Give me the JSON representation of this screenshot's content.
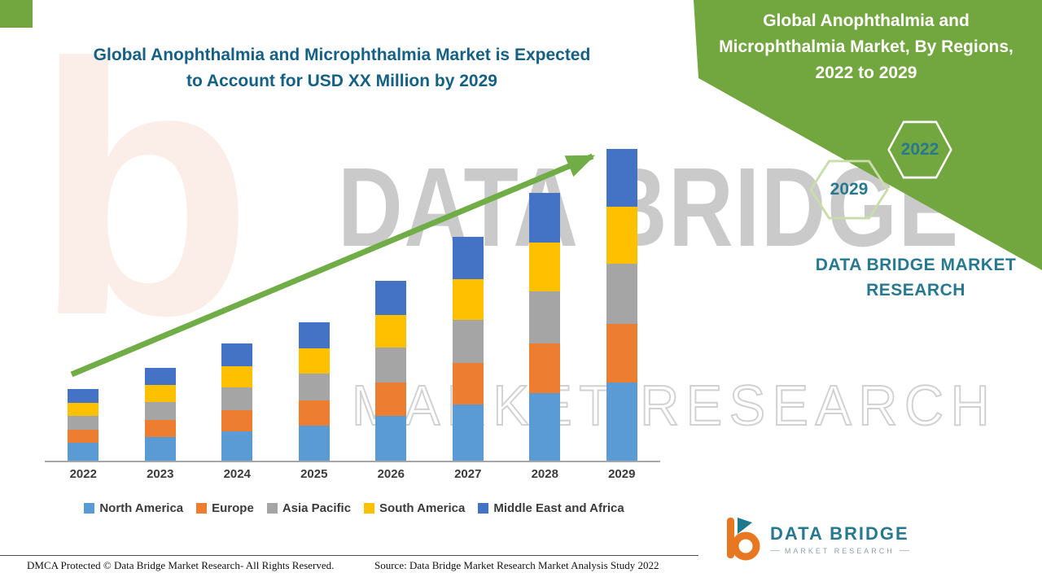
{
  "colors": {
    "green": "#72a63e",
    "arrow_green": "#70ad47",
    "title_blue": "#156186",
    "teal": "#26798e",
    "axis_gray": "#a6a6a6",
    "label_dark": "#3b3b3b"
  },
  "header": {
    "title_lines": [
      "Global Anophthalmia and Microphthalmia Market is Expected",
      "to Account for USD XX Million by 2029"
    ]
  },
  "chart_data": {
    "type": "bar",
    "stacked": true,
    "title": "Global Anophthalmia and Microphthalmia Market is Expected to Account for USD XX Million by 2029",
    "categories": [
      "2022",
      "2023",
      "2024",
      "2025",
      "2026",
      "2027",
      "2028",
      "2029"
    ],
    "series": [
      {
        "name": "North America",
        "color": "#5b9bd5",
        "values": [
          22,
          29,
          36,
          43,
          55,
          69,
          83,
          96
        ]
      },
      {
        "name": "Europe",
        "color": "#ed7d31",
        "values": [
          16,
          21,
          26,
          31,
          41,
          51,
          61,
          72
        ]
      },
      {
        "name": "Asia Pacific",
        "color": "#a5a5a5",
        "values": [
          17,
          22,
          28,
          33,
          43,
          53,
          64,
          74
        ]
      },
      {
        "name": "South America",
        "color": "#ffc000",
        "values": [
          16,
          21,
          26,
          31,
          40,
          50,
          60,
          70
        ]
      },
      {
        "name": "Middle East and Africa",
        "color": "#4472c4",
        "values": [
          17,
          21,
          28,
          32,
          42,
          52,
          61,
          71
        ]
      }
    ],
    "units": "relative height (actual values shown as USD XX Million)",
    "xlabel": "",
    "ylabel": "",
    "y_axis_visible": false,
    "gridlines": false,
    "legend_position": "bottom",
    "trend_arrow": true
  },
  "watermark": {
    "ghost_letter": "b",
    "line1": "DATA BRIDGE",
    "line2": "MARKET RESEARCH"
  },
  "right_panel": {
    "title_lines": [
      "Global Anophthalmia and",
      "Microphthalmia Market, By Regions,",
      "2022 to 2029"
    ],
    "hexagons": [
      "2029",
      "2022"
    ],
    "brand_lines": [
      "DATA BRIDGE MARKET",
      "RESEARCH"
    ]
  },
  "logo": {
    "brand": "DATA BRIDGE",
    "tagline": "MARKET RESEARCH"
  },
  "footer": {
    "dmca": "DMCA Protected © Data Bridge Market Research- All Rights Reserved.",
    "source": "Source: Data Bridge Market Research Market Analysis Study 2022"
  }
}
